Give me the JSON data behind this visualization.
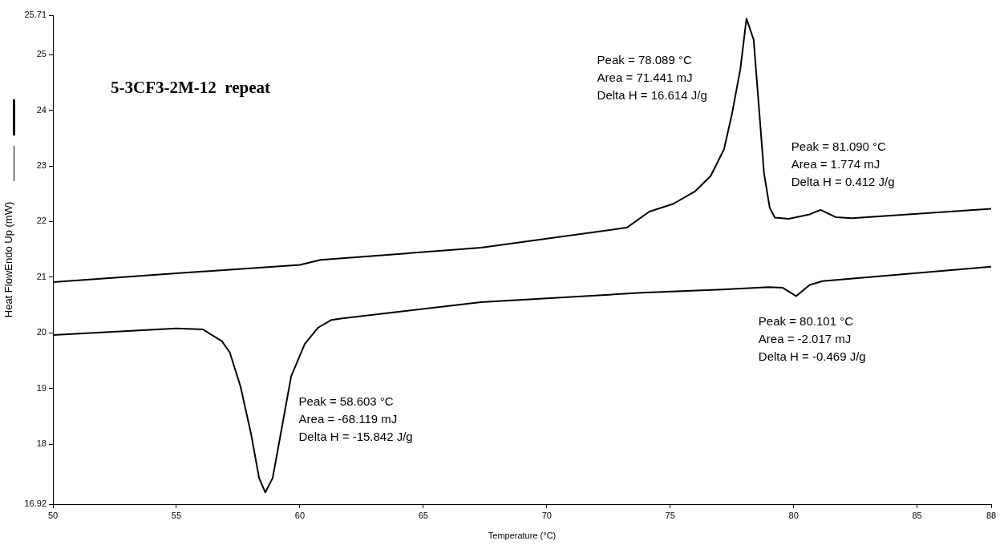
{
  "chart_data": {
    "type": "line",
    "title": "5-3CF3-2M-12  repeat",
    "xlabel": "Temperature (°C)",
    "ylabel": "Heat FlowEndo Up (mW)",
    "xlim": [
      50,
      88
    ],
    "xticks": [
      50,
      55,
      60,
      65,
      70,
      75,
      80,
      85,
      88
    ],
    "ylim": [
      16.92,
      25.71
    ],
    "yticks": [
      16.92,
      18,
      19,
      20,
      21,
      22,
      23,
      24,
      25,
      25.71
    ],
    "grid": false,
    "legend": false,
    "marker": "none",
    "line_style": "solid",
    "series": [
      {
        "color": "#000000",
        "x": [
          50,
          55,
          60,
          60.84,
          67.34,
          73.24,
          74.16,
          75.13,
          76.0,
          76.64,
          77.18,
          77.5,
          77.84,
          78.09,
          78.38,
          78.59,
          78.8,
          79.03,
          79.24,
          79.8,
          80.65,
          81.09,
          81.7,
          82.37,
          88
        ],
        "values": [
          20.91,
          21.07,
          21.22,
          21.31,
          21.53,
          21.89,
          22.18,
          22.32,
          22.54,
          22.82,
          23.3,
          23.93,
          24.74,
          25.65,
          25.27,
          24.08,
          22.87,
          22.25,
          22.07,
          22.05,
          22.13,
          22.21,
          22.08,
          22.06,
          22.23
        ]
      },
      {
        "color": "#000000",
        "x": [
          50,
          55,
          56.08,
          56.84,
          57.16,
          57.6,
          58.03,
          58.35,
          58.6,
          58.9,
          59.22,
          59.65,
          60.2,
          60.73,
          61.27,
          61.72,
          67.34,
          73.83,
          77.08,
          78.99,
          79.56,
          80.1,
          80.65,
          81.17,
          88
        ],
        "values": [
          19.96,
          20.08,
          20.06,
          19.85,
          19.65,
          19.03,
          18.17,
          17.39,
          17.13,
          17.39,
          18.17,
          19.22,
          19.8,
          20.09,
          20.23,
          20.26,
          20.55,
          20.72,
          20.78,
          20.82,
          20.81,
          20.66,
          20.86,
          20.93,
          21.19
        ]
      }
    ],
    "annotations": [
      "Peak = 78.089 °C\nArea = 71.441 mJ\nDelta H = 16.614 J/g",
      "Peak = 81.090 °C\nArea = 1.774 mJ\nDelta H = 0.412 J/g",
      "Peak = 80.101 °C\nArea = -2.017 mJ\nDelta H = -0.469 J/g",
      "Peak = 58.603 °C\nArea = -68.119 mJ\nDelta H = -15.842 J/g"
    ]
  }
}
